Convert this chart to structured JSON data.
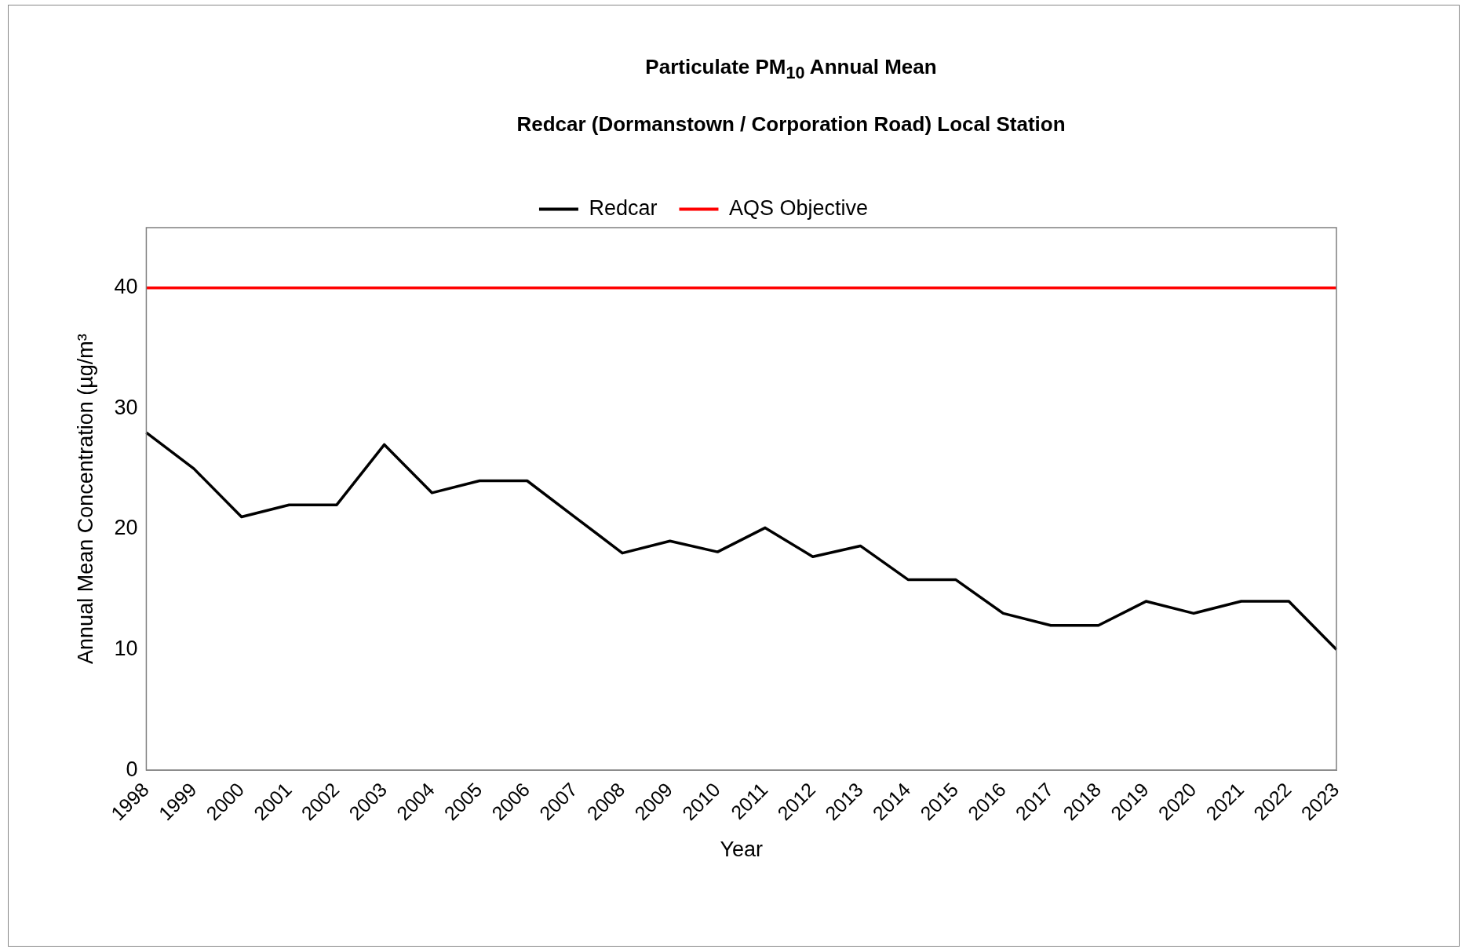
{
  "chart_data": {
    "type": "line",
    "title": "Particulate PM$_{10}$ Annual Mean",
    "subtitle": "Redcar (Dormanstown / Corporation Road) Local Station",
    "xlabel": "Year",
    "ylabel": "Annual Mean Concentration (µg/m³",
    "categories": [
      "1998",
      "1999",
      "2000",
      "2001",
      "2002",
      "2003",
      "2004",
      "2005",
      "2006",
      "2007",
      "2008",
      "2009",
      "2010",
      "2011",
      "2012",
      "2013",
      "2014",
      "2015",
      "2016",
      "2017",
      "2018",
      "2019",
      "2020",
      "2021",
      "2022",
      "2023"
    ],
    "series": [
      {
        "name": "Redcar",
        "color": "#000000",
        "values": [
          28,
          25,
          21,
          22,
          22,
          27,
          23,
          24,
          24,
          21,
          18,
          19,
          18.1,
          20.1,
          17.7,
          18.6,
          15.8,
          15.8,
          13,
          12,
          12,
          14,
          13,
          14,
          14,
          10
        ]
      },
      {
        "name": "AQS Objective",
        "color": "#ff0000",
        "values": [
          40,
          40,
          40,
          40,
          40,
          40,
          40,
          40,
          40,
          40,
          40,
          40,
          40,
          40,
          40,
          40,
          40,
          40,
          40,
          40,
          40,
          40,
          40,
          40,
          40,
          40
        ]
      }
    ],
    "ylim": [
      0,
      45
    ],
    "yticks": [
      0,
      10,
      20,
      30,
      40
    ],
    "grid": false,
    "legend": "top",
    "marker": "none",
    "line_style": "solid"
  }
}
